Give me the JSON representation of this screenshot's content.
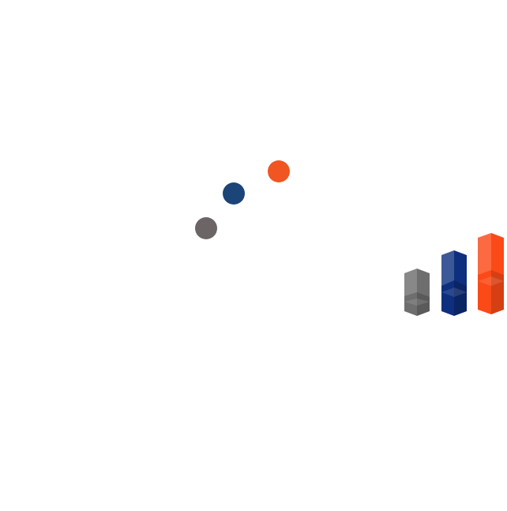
{
  "colors": {
    "orange": "#f05522",
    "blue": "#1b4478",
    "gray": "#6b6566",
    "bar_gray": "#6e6e6e",
    "bar_blue": "#0d2f7e",
    "bar_orange": "#fb4a17"
  },
  "dots": [
    {
      "name": "orange-dot",
      "color_key": "orange"
    },
    {
      "name": "blue-dot",
      "color_key": "blue"
    },
    {
      "name": "gray-dot",
      "color_key": "gray"
    }
  ],
  "bars": [
    {
      "name": "gray-bar",
      "color_key": "bar_gray"
    },
    {
      "name": "blue-bar",
      "color_key": "bar_blue"
    },
    {
      "name": "orange-bar",
      "color_key": "bar_orange"
    }
  ]
}
